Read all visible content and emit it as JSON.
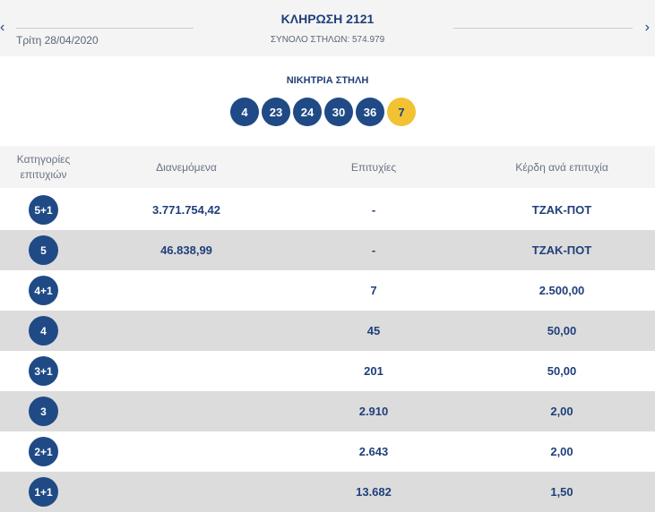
{
  "header": {
    "prev_arrow": "‹",
    "next_arrow": "›",
    "date": "Τρίτη 28/04/2020",
    "title": "ΚΛΗΡΩΣΗ 2121",
    "total_columns": "ΣΥΝΟΛΟ ΣΤΗΛΩΝ: 574.979"
  },
  "winning": {
    "label": "ΝΙΚΗΤΡΙΑ ΣΤΗΛΗ",
    "numbers": [
      "4",
      "23",
      "24",
      "30",
      "36"
    ],
    "joker": "7"
  },
  "table": {
    "headers": {
      "category": "Κατηγορίες επιτυχιών",
      "distributed": "Διανεμόμενα",
      "winners": "Επιτυχίες",
      "prize": "Κέρδη ανά επιτυχία"
    },
    "rows": [
      {
        "category": "5+1",
        "distributed": "3.771.754,42",
        "winners": "-",
        "prize": "ΤΖΑΚ-ΠΟΤ"
      },
      {
        "category": "5",
        "distributed": "46.838,99",
        "winners": "-",
        "prize": "ΤΖΑΚ-ΠΟΤ"
      },
      {
        "category": "4+1",
        "distributed": "",
        "winners": "7",
        "prize": "2.500,00"
      },
      {
        "category": "4",
        "distributed": "",
        "winners": "45",
        "prize": "50,00"
      },
      {
        "category": "3+1",
        "distributed": "",
        "winners": "201",
        "prize": "50,00"
      },
      {
        "category": "3",
        "distributed": "",
        "winners": "2.910",
        "prize": "2,00"
      },
      {
        "category": "2+1",
        "distributed": "",
        "winners": "2.643",
        "prize": "2,00"
      },
      {
        "category": "1+1",
        "distributed": "",
        "winners": "13.682",
        "prize": "1,50"
      }
    ]
  },
  "colors": {
    "primary": "#1f4a86",
    "joker": "#f1c232",
    "row_alt": "#dcdcdc"
  }
}
